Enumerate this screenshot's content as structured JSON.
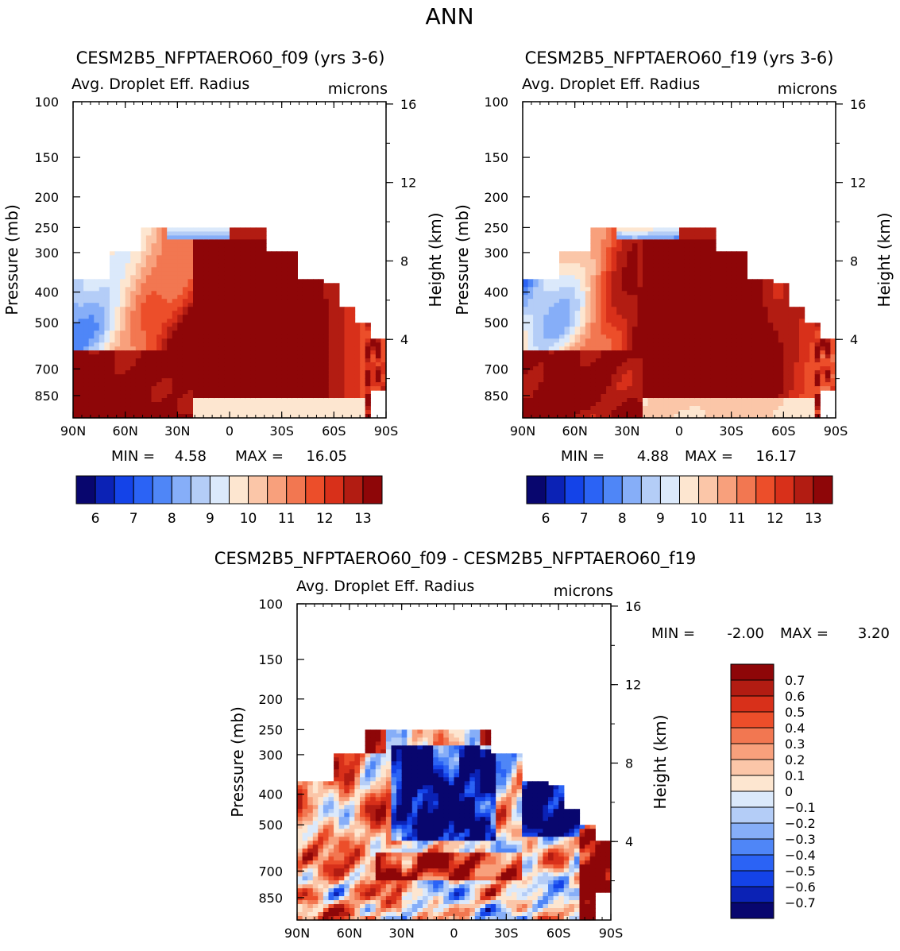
{
  "figure": {
    "title": "ANN"
  },
  "colors": {
    "scale16": [
      "#08066e",
      "#0b22b5",
      "#1443e8",
      "#2b63f5",
      "#4f86f7",
      "#86aef8",
      "#b4cdf7",
      "#dbe9fb",
      "#fde6d0",
      "#fbc6a8",
      "#f8a07c",
      "#f27751",
      "#ec4e2a",
      "#d8301a",
      "#b21c12",
      "#8e0608"
    ],
    "scale16_diff": [
      "#08066e",
      "#0b22b5",
      "#1443e8",
      "#2b63f5",
      "#4f86f7",
      "#86aef8",
      "#b4cdf7",
      "#dbe9fb",
      "#fde6d0",
      "#fbc6a8",
      "#f8a07c",
      "#f27751",
      "#ec4e2a",
      "#d8301a",
      "#b21c12",
      "#8e0608"
    ]
  },
  "chart_data": [
    {
      "type": "heatmap",
      "panel": "top-left",
      "title": "CESM2B5_NFPTAERO60_f09 (yrs 3-6)",
      "subtitle_left": "Avg. Droplet Eff. Radius",
      "subtitle_right": "microns",
      "ylabel": "Pressure (mb)",
      "ylabel_right": "Height (km)",
      "ylim": [
        1000,
        100
      ],
      "x_ticks": [
        "90N",
        "60N",
        "30N",
        "0",
        "30S",
        "60S",
        "90S"
      ],
      "y_ticks": [
        "100",
        "150",
        "200",
        "250",
        "300",
        "400",
        "500",
        "700",
        "850"
      ],
      "y_ticks_right": [
        "16",
        "12",
        "8",
        "4"
      ],
      "min_label": "MIN =",
      "min_value": "4.58",
      "max_label": "MAX =",
      "max_value": "16.05",
      "colorbar_labels": [
        "6",
        "7",
        "8",
        "9",
        "10",
        "11",
        "12",
        "13"
      ],
      "levels": [
        5.5,
        6,
        6.5,
        7,
        7.5,
        8,
        8.5,
        9,
        9.5,
        10,
        10.5,
        11,
        11.5,
        12,
        12.5,
        13
      ]
    },
    {
      "type": "heatmap",
      "panel": "top-right",
      "title": "CESM2B5_NFPTAERO60_f19 (yrs 3-6)",
      "subtitle_left": "Avg. Droplet Eff. Radius",
      "subtitle_right": "microns",
      "ylabel": "Pressure (mb)",
      "ylabel_right": "Height (km)",
      "ylim": [
        1000,
        100
      ],
      "x_ticks": [
        "90N",
        "60N",
        "30N",
        "0",
        "30S",
        "60S",
        "90S"
      ],
      "y_ticks": [
        "100",
        "150",
        "200",
        "250",
        "300",
        "400",
        "500",
        "700",
        "850"
      ],
      "y_ticks_right": [
        "16",
        "12",
        "8",
        "4"
      ],
      "min_label": "MIN =",
      "min_value": "4.88",
      "max_label": "MAX =",
      "max_value": "16.17",
      "colorbar_labels": [
        "6",
        "7",
        "8",
        "9",
        "10",
        "11",
        "12",
        "13"
      ],
      "levels": [
        5.5,
        6,
        6.5,
        7,
        7.5,
        8,
        8.5,
        9,
        9.5,
        10,
        10.5,
        11,
        11.5,
        12,
        12.5,
        13
      ]
    },
    {
      "type": "heatmap",
      "panel": "bottom",
      "title": "CESM2B5_NFPTAERO60_f09 - CESM2B5_NFPTAERO60_f19",
      "subtitle_left": "Avg. Droplet Eff. Radius",
      "subtitle_right": "microns",
      "ylabel": "Pressure (mb)",
      "ylabel_right": "Height (km)",
      "ylim": [
        1000,
        100
      ],
      "x_ticks": [
        "90N",
        "60N",
        "30N",
        "0",
        "30S",
        "60S",
        "90S"
      ],
      "y_ticks": [
        "100",
        "150",
        "200",
        "250",
        "300",
        "400",
        "500",
        "700",
        "850"
      ],
      "y_ticks_right": [
        "16",
        "12",
        "8",
        "4"
      ],
      "min_label": "MIN =",
      "min_value": "-2.00",
      "max_label": "MAX =",
      "max_value": "3.20",
      "colorbar_labels": [
        "0.7",
        "0.6",
        "0.5",
        "0.4",
        "0.3",
        "0.2",
        "0.1",
        "0",
        "-0.1",
        "-0.2",
        "-0.3",
        "-0.4",
        "-0.5",
        "-0.6",
        "-0.7"
      ],
      "levels": [
        -0.7,
        -0.6,
        -0.5,
        -0.4,
        -0.3,
        -0.2,
        -0.1,
        0,
        0.1,
        0.2,
        0.3,
        0.4,
        0.5,
        0.6,
        0.7
      ]
    }
  ]
}
